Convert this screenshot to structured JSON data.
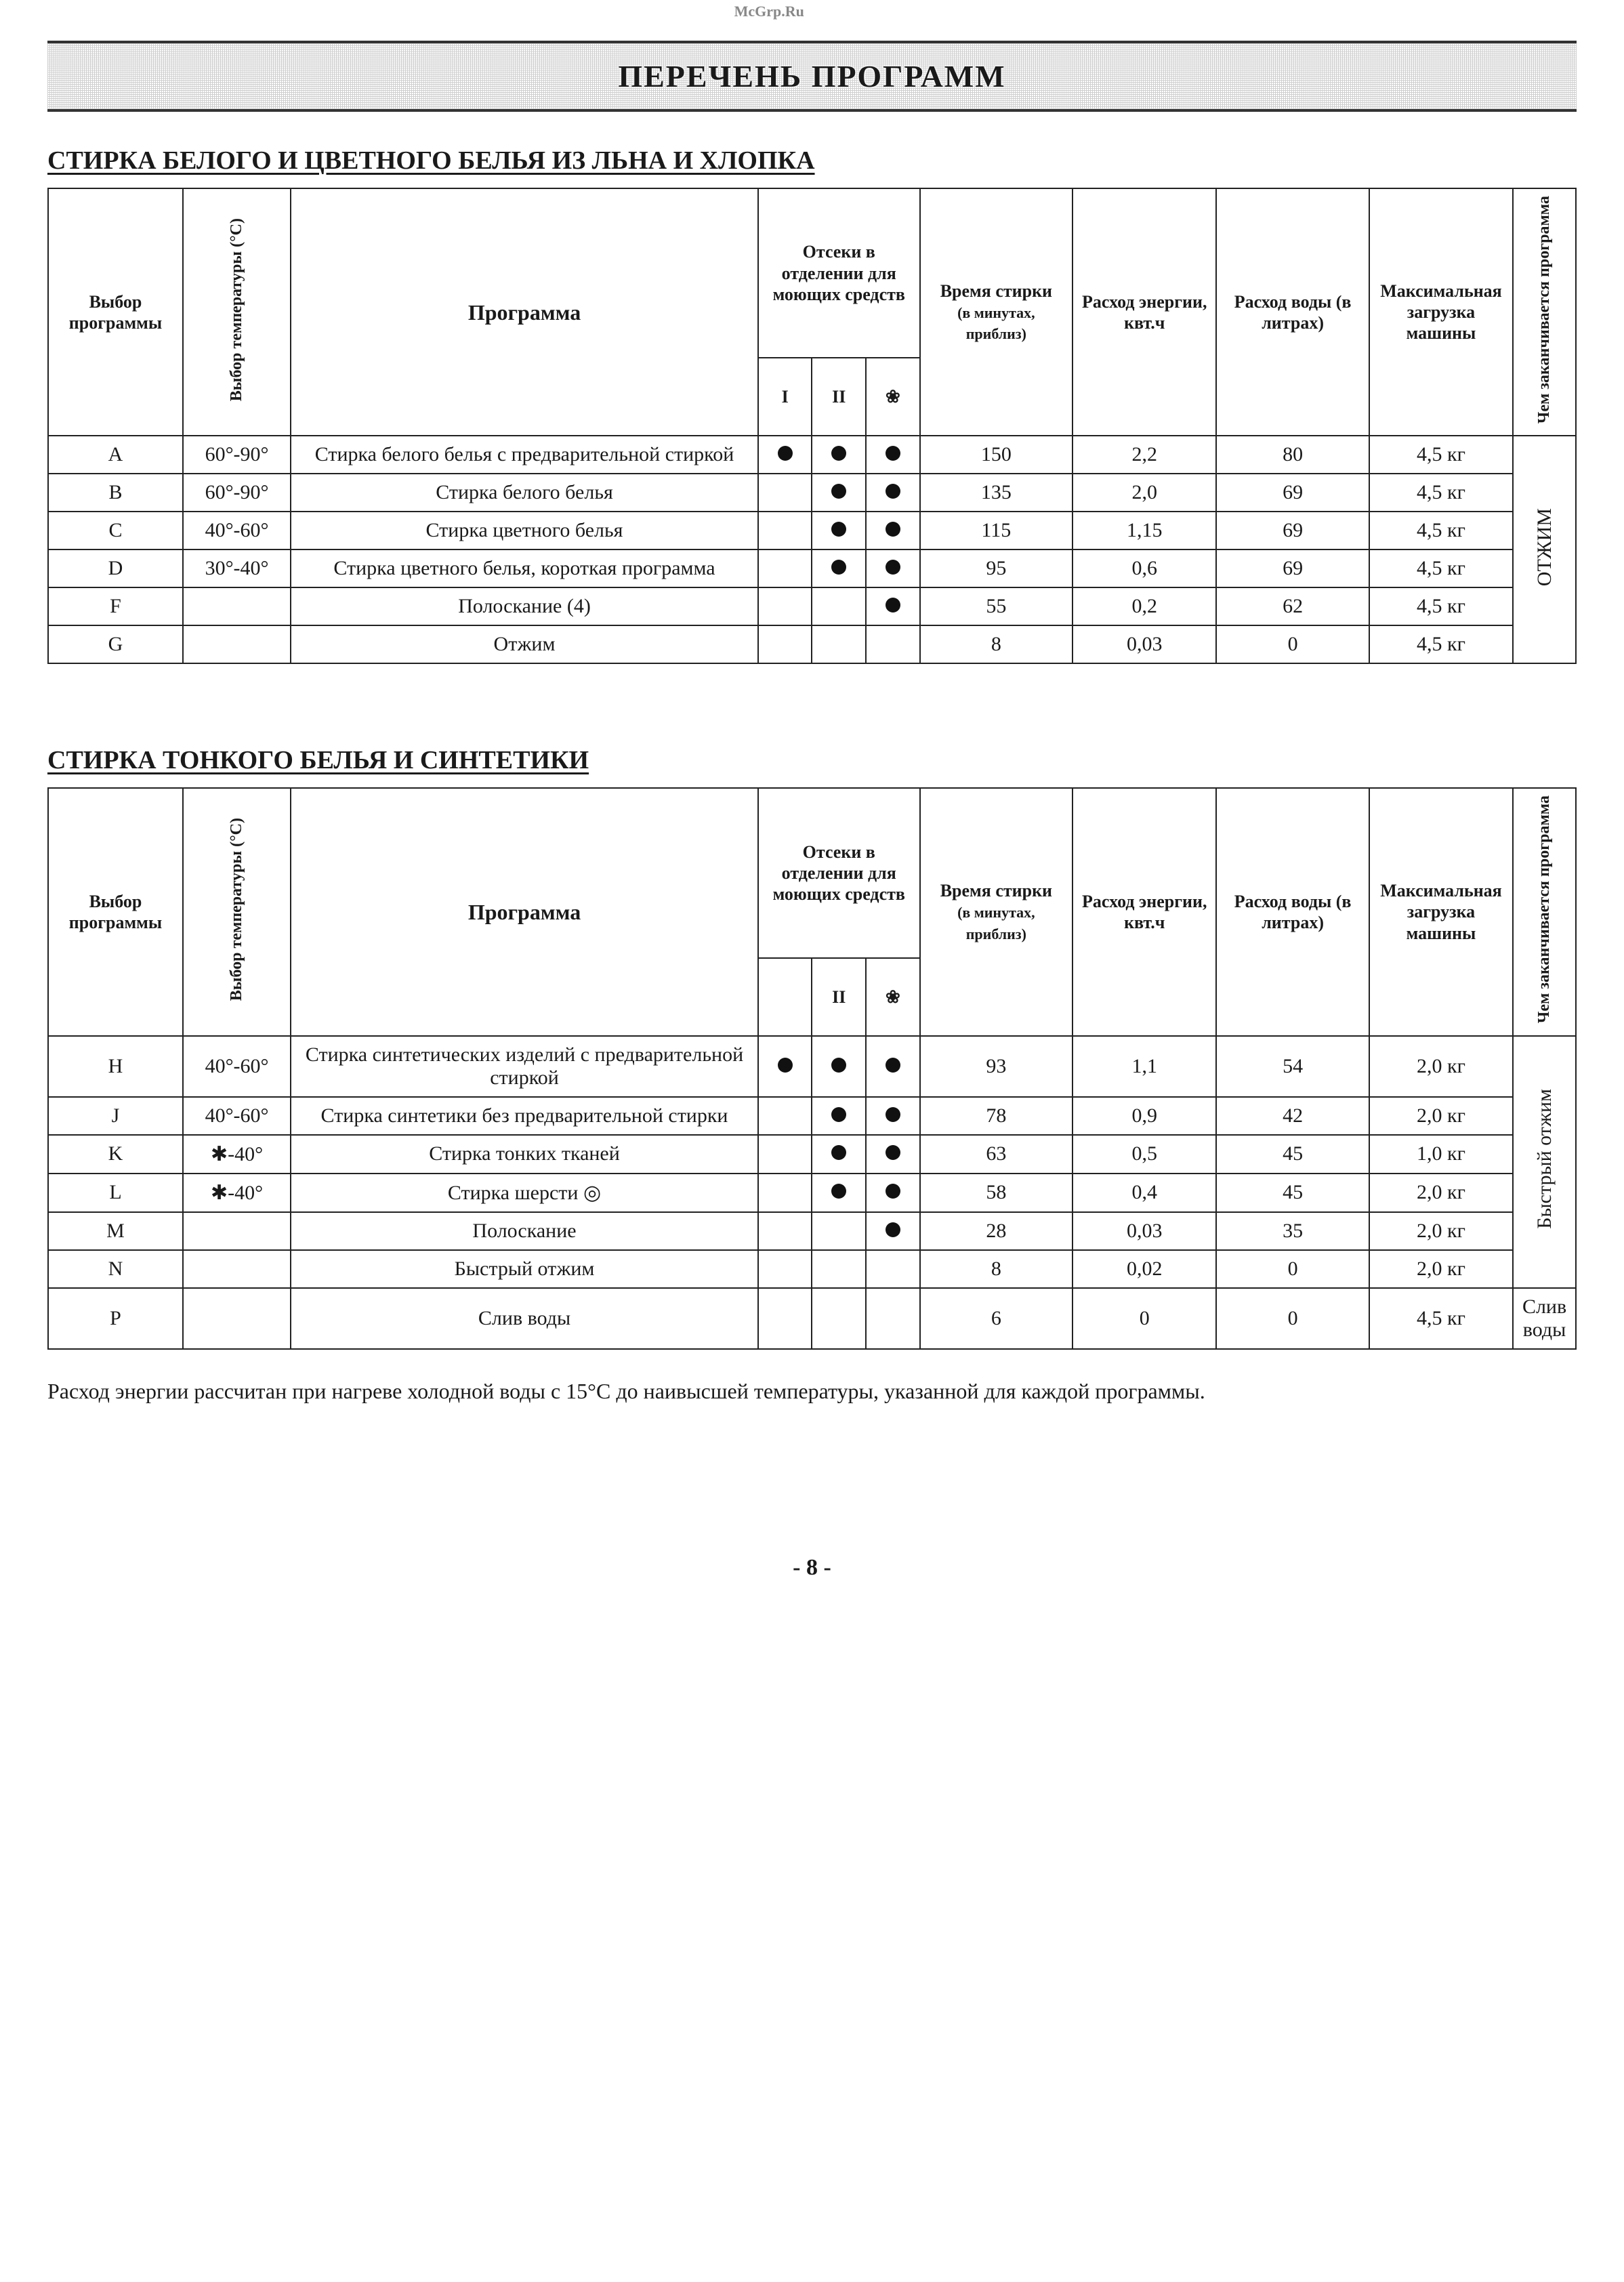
{
  "banner_title": "ПЕРЕЧЕНЬ ПРОГРАММ",
  "headers": {
    "prog_sel": "Выбор программы",
    "temp_sel": "Выбор температуры (°C)",
    "prog_name": "Программа",
    "compart_top": "Отсеки в отделении для моющих средств",
    "compart1": "I",
    "compart2": "II",
    "compart3_glyph": "❀",
    "time": "Время стирки",
    "time_sub": "(в минутах, приблиз)",
    "energy": "Расход энергии, квт.ч",
    "water": "Расход воды (в литрах)",
    "load": "Макси­мальная загрузка машины",
    "end": "Чем заканчивается программа"
  },
  "section1": {
    "title": "СТИРКА БЕЛОГО И ЦВЕТНОГО БЕЛЬЯ ИЗ ЛЬНА И ХЛОПКА",
    "end_label": "ОТЖИМ",
    "rows": [
      {
        "sel": "A",
        "temp": "60°-90°",
        "name": "Стирка белого белья с предварительной стиркой",
        "d1": true,
        "d2": true,
        "d3": true,
        "time": "150",
        "energy": "2,2",
        "water": "80",
        "load": "4,5 кг"
      },
      {
        "sel": "B",
        "temp": "60°-90°",
        "name": "Стирка белого белья",
        "d1": false,
        "d2": true,
        "d3": true,
        "time": "135",
        "energy": "2,0",
        "water": "69",
        "load": "4,5 кг"
      },
      {
        "sel": "C",
        "temp": "40°-60°",
        "name": "Стирка цветного белья",
        "d1": false,
        "d2": true,
        "d3": true,
        "time": "115",
        "energy": "1,15",
        "water": "69",
        "load": "4,5 кг"
      },
      {
        "sel": "D",
        "temp": "30°-40°",
        "name": "Стирка цветного белья, короткая программа",
        "d1": false,
        "d2": true,
        "d3": true,
        "time": "95",
        "energy": "0,6",
        "water": "69",
        "load": "4,5 кг"
      },
      {
        "sel": "F",
        "temp": "",
        "name": "Полоскание (4)",
        "d1": false,
        "d2": false,
        "d3": true,
        "time": "55",
        "energy": "0,2",
        "water": "62",
        "load": "4,5 кг"
      },
      {
        "sel": "G",
        "temp": "",
        "name": "Отжим",
        "d1": false,
        "d2": false,
        "d3": false,
        "time": "8",
        "energy": "0,03",
        "water": "0",
        "load": "4,5 кг"
      }
    ]
  },
  "section2": {
    "title": "СТИРКА ТОНКОГО БЕЛЬЯ И СИНТЕТИКИ",
    "end_label_main": "Быстрый отжим",
    "end_label_last": "Слив воды",
    "watermark": "McGrp.Ru",
    "star": "✱",
    "wool_icon": "◎",
    "rows": [
      {
        "sel": "H",
        "temp": "40°-60°",
        "name": "Стирка синтетических изделий с предварительной стиркой",
        "d1": true,
        "d2": true,
        "d3": true,
        "time": "93",
        "energy": "1,1",
        "water": "54",
        "load": "2,0 кг"
      },
      {
        "sel": "J",
        "temp": "40°-60°",
        "name": "Стирка синтетики без предварительной стирки",
        "d1": false,
        "d2": true,
        "d3": true,
        "time": "78",
        "energy": "0,9",
        "water": "42",
        "load": "2,0 кг"
      },
      {
        "sel": "K",
        "temp": "✱-40°",
        "name": "Стирка тонких тканей",
        "d1": false,
        "d2": true,
        "d3": true,
        "time": "63",
        "energy": "0,5",
        "water": "45",
        "load": "1,0 кг"
      },
      {
        "sel": "L",
        "temp": "✱-40°",
        "name": "Стирка шерсти  ◎",
        "d1": false,
        "d2": true,
        "d3": true,
        "time": "58",
        "energy": "0,4",
        "water": "45",
        "load": "2,0 кг"
      },
      {
        "sel": "M",
        "temp": "",
        "name": "Полоскание",
        "d1": false,
        "d2": false,
        "d3": true,
        "time": "28",
        "energy": "0,03",
        "water": "35",
        "load": "2,0 кг"
      },
      {
        "sel": "N",
        "temp": "",
        "name": "Быстрый отжим",
        "d1": false,
        "d2": false,
        "d3": false,
        "time": "8",
        "energy": "0,02",
        "water": "0",
        "load": "2,0 кг"
      },
      {
        "sel": "P",
        "temp": "",
        "name": "Слив воды",
        "d1": false,
        "d2": false,
        "d3": false,
        "time": "6",
        "energy": "0",
        "water": "0",
        "load": "4,5 кг"
      }
    ]
  },
  "footnote": "Расход энергии рассчитан при нагреве холодной воды с 15°C до наивысшей температуры, указанной для каждой программы.",
  "page_number": "- 8 -",
  "style": {
    "text_color": "#1a1a1a",
    "border_color": "#222222",
    "banner_grid_color": "#cfcfcf",
    "banner_border": "#333333",
    "dot_color": "#111111",
    "watermark_color": "#888888",
    "bg": "#ffffff",
    "body_font_pt": 30,
    "banner_title_pt": 46,
    "section_head_pt": 38,
    "header_small_pt": 22,
    "footnote_pt": 32
  }
}
